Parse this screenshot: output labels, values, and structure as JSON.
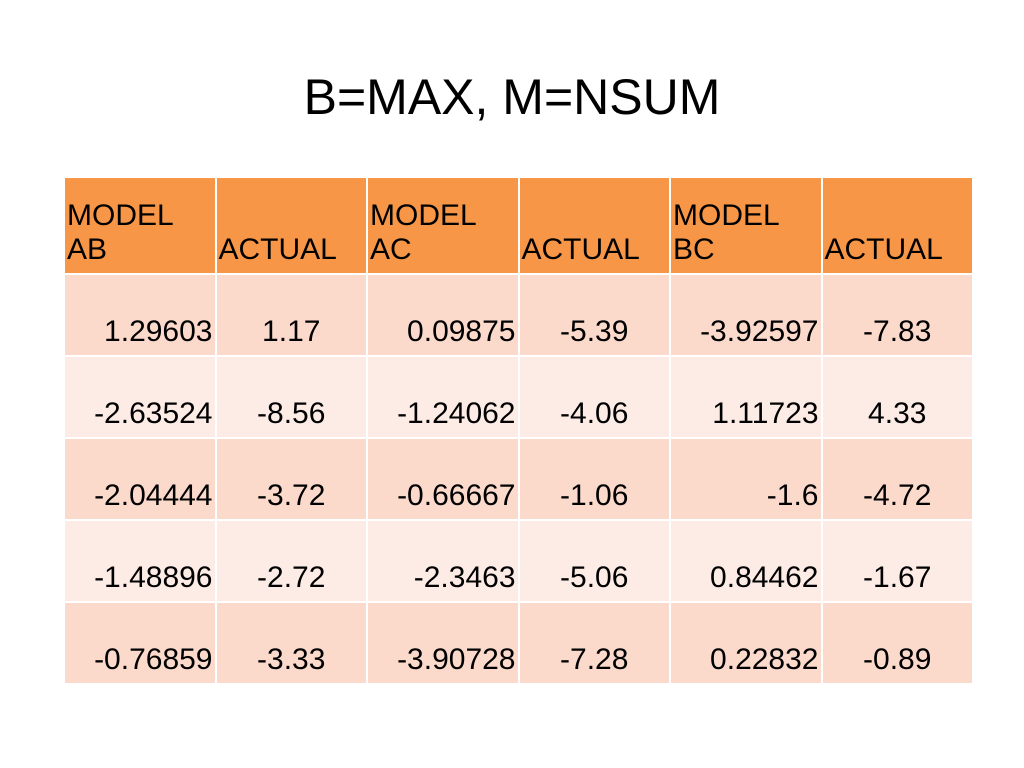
{
  "title": "B=MAX, M=NSUM",
  "colors": {
    "header_fill": "#f79646",
    "row_band_dark": "#fbd9cb",
    "row_band_light": "#fdece6"
  },
  "table": {
    "headers": [
      [
        "MODEL",
        "AB"
      ],
      [
        "",
        "ACTUAL"
      ],
      [
        "MODEL",
        "AC"
      ],
      [
        "",
        "ACTUAL"
      ],
      [
        "MODEL",
        "BC"
      ],
      [
        "",
        "ACTUAL"
      ]
    ],
    "rows": [
      [
        "1.29603",
        "1.17",
        "0.09875",
        "-5.39",
        "-3.92597",
        "-7.83"
      ],
      [
        "-2.63524",
        "-8.56",
        "-1.24062",
        "-4.06",
        "1.11723",
        "4.33"
      ],
      [
        "-2.04444",
        "-3.72",
        "-0.66667",
        "-1.06",
        "-1.6",
        "-4.72"
      ],
      [
        "-1.48896",
        "-2.72",
        "-2.3463",
        "-5.06",
        "0.84462",
        "-1.67"
      ],
      [
        "-0.76859",
        "-3.33",
        "-3.90728",
        "-7.28",
        "0.22832",
        "-0.89"
      ]
    ]
  }
}
